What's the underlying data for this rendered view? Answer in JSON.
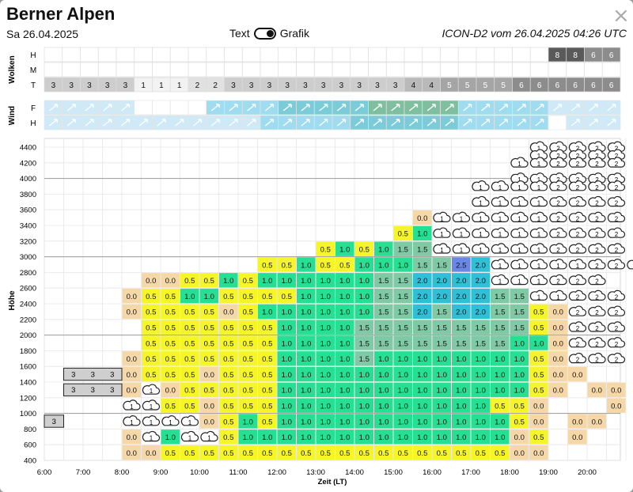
{
  "header": {
    "title": "Berner Alpen",
    "date": "Sa 26.04.2025",
    "toggle_text": "Text",
    "toggle_grafik": "Grafik",
    "model": "ICON-D2 vom 26.04.2025 04:26 UTC",
    "close": "×"
  },
  "clouds": {
    "section_label": "Wolken",
    "rows": [
      "H",
      "M",
      "T"
    ],
    "H": [
      "",
      "",
      "",
      "",
      "",
      "",
      "",
      "",
      "",
      "",
      "",
      "",
      "",
      "",
      "",
      "",
      "",
      "",
      "",
      "",
      "",
      "",
      "",
      "",
      "",
      "",
      "",
      "",
      "8",
      "8",
      "6",
      "6"
    ],
    "M": [
      "",
      "",
      "",
      "",
      "",
      "",
      "",
      "",
      "",
      "",
      "",
      "",
      "",
      "",
      "",
      "",
      "",
      "",
      "",
      "",
      "",
      "",
      "",
      "",
      "",
      "",
      "",
      "",
      "",
      "",
      "",
      ""
    ],
    "T": [
      "3",
      "3",
      "3",
      "3",
      "3",
      "1",
      "1",
      "1",
      "2",
      "2",
      "3",
      "3",
      "3",
      "3",
      "3",
      "3",
      "3",
      "3",
      "3",
      "3",
      "4",
      "4",
      "5",
      "5",
      "5",
      "5",
      "6",
      "6",
      "6",
      "6",
      "6",
      "6"
    ]
  },
  "wind": {
    "section_label": "Wind",
    "rows": [
      "F",
      "H"
    ],
    "F": [
      1,
      1,
      1,
      1,
      1,
      0,
      0,
      0,
      0,
      2,
      2,
      2,
      2,
      3,
      3,
      3,
      3,
      3,
      4,
      4,
      4,
      4,
      4,
      2,
      2,
      2,
      2,
      2,
      1,
      1,
      1,
      1
    ],
    "H": [
      1,
      1,
      1,
      1,
      1,
      1,
      1,
      1,
      1,
      1,
      1,
      1,
      2,
      2,
      2,
      2,
      2,
      3,
      3,
      3,
      3,
      3,
      3,
      2,
      2,
      2,
      2,
      2,
      0,
      1,
      1,
      1
    ]
  },
  "chart": {
    "ylabel": "Höhe",
    "xlabel": "Zeit (LT)",
    "y_ticks": [
      "4400",
      "4200",
      "4000",
      "3800",
      "3600",
      "3400",
      "3200",
      "3000",
      "2800",
      "2600",
      "2400",
      "2200",
      "2000",
      "1800",
      "1600",
      "1400",
      "1200",
      "1000",
      "800",
      "600",
      "400"
    ],
    "x_ticks": [
      "6:00",
      "7:00",
      "8:00",
      "9:00",
      "10:00",
      "11:00",
      "12:00",
      "13:00",
      "14:00",
      "15:00",
      "16:00",
      "17:00",
      "18:00",
      "19:00",
      "20:00"
    ],
    "grid": {
      "2": "3,3,3|6,3,3",
      "3": "3,3,3|6,3,3",
      "4": "3,3,3|6,3,3"
    },
    "rows": [
      "4400|,,,,,,,,,,,,,,,,,,,,,,,,,c1,c2,c2,c2,c2",
      "4300|,,,,,,,,,,,,,,,,,,,,,,,,,c1,c2,c2,c2,c2",
      "4200|,,,,,,,,,,,,,,,,,,,,,,,,c1,c1,c2,c2,c2,c2",
      "4000|,,,,,,,,,,,,,,,,,,,,,,,,c1,c1,c2,c2,c2,c2",
      "3900|,,,,,,,,,,,,,,,,,,,,,,c1,c1,c1,c1,c2,c2,c2,c2",
      "3700|,,,,,,,,,,,,,,,,,,,,,,c1,c1,c1,c1,c2,c2,c2,c2",
      "3500|,,,,,,,,,,,,,,,,,,,0.0,c1,c1,c1,c1,c1,c1,c2,c2,c2,c2",
      "3300|,,,,,,,,,,,,,,,,,,0.5,1.0,c1,c1,c1,c1,c1,c1,c2,c2,c2,c2",
      "3100|,,,,,,,,,,,,,,0.5,1.0,0.5,1.0,1.5,1.5,c1,c1,c1,c1,c1,c1,c2,c2,c2,c2",
      "2900|,,,,,,,,,,,0.5,0.5,1.0,0.5,0.5,1.0,1.0,1.0,1.5,1.5,2.5,2.0,c1,c1,c1,c1,c1,c2,c2,c2",
      "2700|,,,,,0.0,0.0,0.5,0.5,1.0,0.5,1.0,1.0,1.0,1.0,1.0,1.0,1.5,1.5,2.0,2.0,2.0,2.0,c1,c1,c1,c2,c2,c2",
      "2500|,,,,0.0,0.5,0.5,1.0,1.0,0.5,0.5,0.5,0.5,1.0,1.0,1.0,1.0,1.5,1.5,2.0,2.0,2.0,2.0,1.5,1.5,c1,c1,c2,c2,c2",
      "2300|,,,,0.0,0.5,0.5,0.5,0.5,0.0,0.5,1.0,1.0,1.0,1.0,1.0,1.0,1.5,1.5,2.0,1.5,2.0,2.0,1.5,1.5,0.5,0.0,c2,c2,c2",
      "2100|,,,,,0.5,0.5,0.5,0.5,0.5,0.5,0.5,1.0,1.0,1.0,1.0,1.5,1.5,1.5,1.5,1.5,1.5,1.5,1.5,1.5,0.5,0.0,c2,c2,c2",
      "1900|,,,,,0.5,0.5,0.5,0.5,0.5,0.5,0.5,1.0,1.0,1.0,1.0,1.5,1.5,1.5,1.5,1.5,1.5,1.5,1.5,1.0,1.0,0.0,c2,c2,c2",
      "1700|,,,,0.0,0.5,0.5,0.5,0.5,0.5,0.5,0.5,1.0,1.0,1.0,1.0,1.5,1.0,1.0,1.0,1.0,1.0,1.0,1.0,1.0,0.5,0.0,c2,c2,c2",
      "1500|,,,,0.0,0.5,0.5,0.5,0.0,0.5,0.5,0.5,1.0,1.0,1.0,1.0,1.0,1.0,1.0,1.0,1.0,1.0,1.0,1.0,1.0,0.5,0.0,0.0,,",
      "1300|,,,,0.0,c1,0.0,0.5,0.5,0.5,0.5,0.5,1.0,1.0,1.0,1.0,1.0,1.0,1.0,1.0,1.0,1.0,1.0,1.0,1.0,0.5,0.0,,0.0,0.0",
      "1100|,,,,c1,c1,0.5,0.5,0.0,0.5,0.5,0.5,1.0,1.0,1.0,1.0,1.0,1.0,1.0,1.0,1.0,1.0,1.0,0.5,0.5,0.0,,,,0.0",
      "900|,,,,c1,c1,c1,c1,0.0,0.5,1.0,0.5,1.0,1.0,1.0,1.0,1.0,1.0,1.0,1.0,1.0,1.0,1.0,1.0,0.5,0.0,,0.0,0.0,",
      "700|,,,,0.0,c1,1.0,c1,c1,0.5,1.0,1.0,1.0,1.0,1.0,1.0,1.0,1.0,1.0,1.0,1.0,1.0,1.0,1.0,0.0,0.5,,0.0,,",
      "500|,,,,0.0,0.0,0.5,0.5,0.5,0.5,0.5,0.5,0.5,0.5,0.5,0.5,0.5,0.5,0.5,0.5,0.5,0.5,0.5,0.5,0.0,0.0,,,,"
    ],
    "stripes": [
      {
        "row": "1500",
        "cells": [
          "3",
          "3",
          "3"
        ]
      },
      {
        "row": "1300",
        "cells": [
          "3",
          "3",
          "3"
        ]
      },
      {
        "row": "900",
        "cells": [
          "3"
        ]
      }
    ]
  }
}
